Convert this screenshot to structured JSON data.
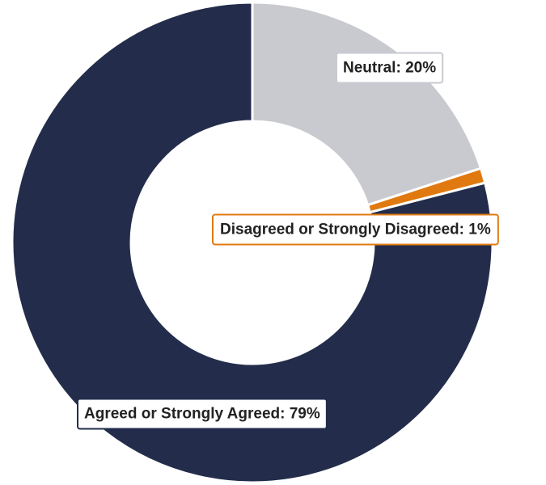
{
  "chart_data": {
    "type": "pie",
    "donut": true,
    "title": "",
    "slices": [
      {
        "label": "Neutral",
        "value": 20,
        "color": "#c8cad0",
        "label_text": "Neutral: 20%"
      },
      {
        "label": "Disagreed or Strongly Disagreed",
        "value": 1,
        "color": "#e07a10",
        "label_text": "Disagreed or Strongly Disagreed: 1%"
      },
      {
        "label": "Agreed or Strongly Agreed",
        "value": 79,
        "color": "#232d4b",
        "label_text": "Agreed or Strongly Agreed: 79%"
      }
    ],
    "legend": "none"
  }
}
